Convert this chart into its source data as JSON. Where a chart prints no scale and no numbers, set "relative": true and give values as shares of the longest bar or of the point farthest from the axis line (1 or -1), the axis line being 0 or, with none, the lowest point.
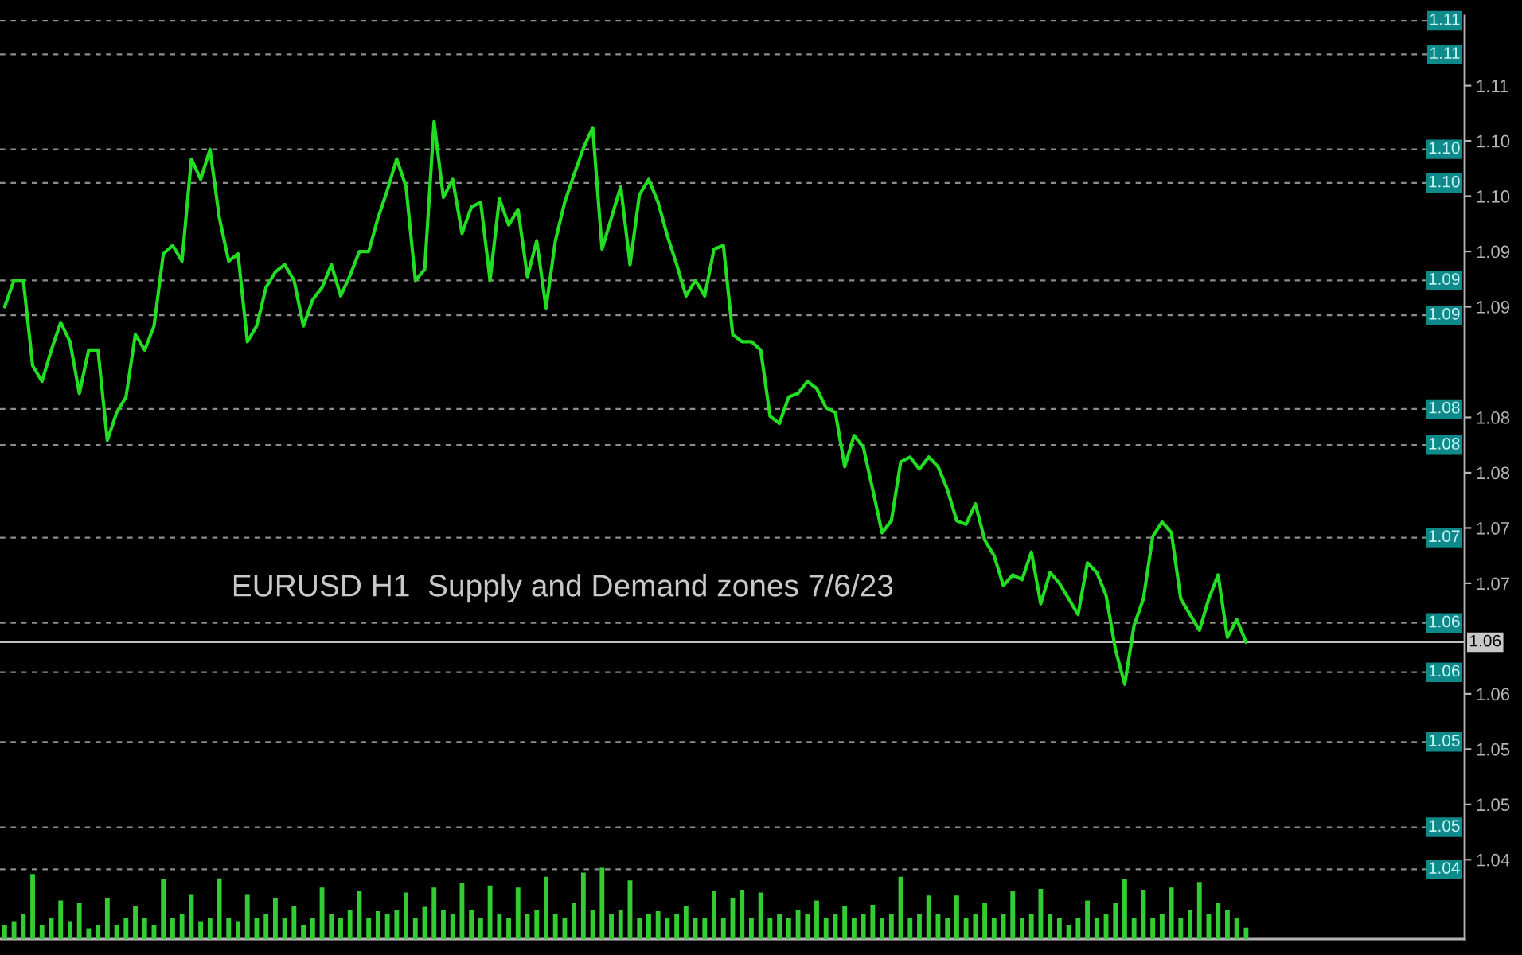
{
  "chart_data": [
    {
      "type": "line",
      "title": "EURUSD H1  Supply and Demand zones 7/6/23",
      "color": "#22dd22",
      "tick_labels": "y",
      "categories": [
        null,
        null,
        null,
        null,
        null,
        null,
        null,
        null,
        null,
        null,
        null,
        null,
        null,
        null,
        null,
        null,
        null,
        null,
        null,
        null,
        null,
        null,
        null,
        null,
        null,
        null,
        null,
        null,
        null,
        null,
        null,
        null,
        null,
        null,
        null,
        null,
        null,
        null,
        null,
        null,
        null,
        null,
        null,
        null,
        null,
        null,
        null,
        null,
        null,
        null,
        null,
        null,
        null,
        null,
        null,
        null,
        null,
        null,
        null,
        null,
        null,
        null,
        null,
        null,
        null,
        null,
        null,
        null,
        null,
        null,
        null,
        null,
        null,
        null,
        null,
        null,
        null,
        null,
        null,
        null,
        null,
        null,
        null,
        null,
        null,
        null,
        null,
        null,
        null,
        null,
        null,
        null,
        null,
        null,
        null,
        null,
        null,
        null,
        null,
        null,
        null,
        null,
        null,
        null,
        null,
        null,
        null,
        null,
        null,
        null,
        null,
        null,
        null,
        null,
        null,
        null,
        null,
        null,
        null,
        null,
        null,
        null,
        null,
        null,
        null,
        null,
        null,
        null,
        null,
        null,
        null,
        null,
        null,
        null
      ],
      "values": [
        1.0896,
        1.0918,
        1.0918,
        1.0847,
        1.0834,
        1.086,
        1.0883,
        1.0867,
        1.0824,
        1.086,
        1.086,
        1.0785,
        1.0808,
        1.0821,
        1.0873,
        1.086,
        1.088,
        1.094,
        1.0947,
        1.0934,
        1.1019,
        1.1002,
        1.1027,
        1.097,
        1.0934,
        1.094,
        1.0867,
        1.088,
        1.0912,
        1.0925,
        1.0931,
        1.0918,
        1.088,
        1.0902,
        1.0912,
        1.0931,
        1.0905,
        1.0922,
        1.0942,
        1.0942,
        1.097,
        1.0993,
        1.1019,
        1.0996,
        1.0918,
        1.0927,
        1.105,
        1.0987,
        1.1002,
        1.0957,
        1.0979,
        1.0983,
        1.0918,
        1.0986,
        1.0964,
        1.0977,
        1.0921,
        1.0951,
        1.0895,
        1.0951,
        1.0983,
        1.1006,
        1.1028,
        1.1045,
        1.0944,
        1.097,
        1.0996,
        1.0931,
        1.0989,
        1.1002,
        1.0983,
        1.0955,
        1.0931,
        1.0905,
        1.0918,
        1.0905,
        1.0944,
        1.0947,
        1.0873,
        1.0867,
        1.0867,
        1.086,
        1.0805,
        1.0799,
        1.0821,
        1.0824,
        1.0834,
        1.0828,
        1.0812,
        1.0808,
        1.0763,
        1.0789,
        1.0779,
        1.0744,
        1.0708,
        1.0718,
        1.0767,
        1.0771,
        1.0761,
        1.0771,
        1.0763,
        1.0744,
        1.0718,
        1.0715,
        1.0732,
        1.0702,
        1.0689,
        1.0664,
        1.0673,
        1.0669,
        1.0692,
        1.0649,
        1.0675,
        1.0666,
        1.0653,
        1.064,
        1.0683,
        1.0675,
        1.0656,
        1.0611,
        1.0582,
        1.0631,
        1.0653,
        1.0705,
        1.0717,
        1.0708,
        1.0653,
        1.064,
        1.0627,
        1.0653,
        1.0673,
        1.0621,
        1.0636,
        1.0617
      ],
      "ylim": [
        1.037,
        1.1138
      ],
      "yticks": [
        {
          "value": 1.108,
          "label": "1.11"
        },
        {
          "value": 1.1034,
          "label": "1.10"
        },
        {
          "value": 1.0988,
          "label": "1.10"
        },
        {
          "value": 1.0942,
          "label": "1.09"
        },
        {
          "value": 1.0896,
          "label": "1.09"
        },
        {
          "value": 1.0804,
          "label": "1.08"
        },
        {
          "value": 1.0758,
          "label": "1.08"
        },
        {
          "value": 1.0712,
          "label": "1.07"
        },
        {
          "value": 1.0666,
          "label": "1.07"
        },
        {
          "value": 1.0574,
          "label": "1.06"
        },
        {
          "value": 1.0528,
          "label": "1.05"
        },
        {
          "value": 1.0482,
          "label": "1.05"
        },
        {
          "value": 1.0436,
          "label": "1.04"
        }
      ],
      "ref_lines": [
        {
          "axis": "y",
          "value": 1.1134,
          "label": "1.11",
          "color": "#8c8c8c",
          "line_style": "dashed"
        },
        {
          "axis": "y",
          "value": 1.1106,
          "label": "1.11",
          "color": "#8c8c8c",
          "line_style": "dashed"
        },
        {
          "axis": "y",
          "value": 1.1027,
          "label": "1.10",
          "color": "#8c8c8c",
          "line_style": "dashed"
        },
        {
          "axis": "y",
          "value": 1.0999,
          "label": "1.10",
          "color": "#8c8c8c",
          "line_style": "dashed"
        },
        {
          "axis": "y",
          "value": 1.0918,
          "label": "1.09",
          "color": "#8c8c8c",
          "line_style": "dashed"
        },
        {
          "axis": "y",
          "value": 1.0889,
          "label": "1.09",
          "color": "#8c8c8c",
          "line_style": "dashed"
        },
        {
          "axis": "y",
          "value": 1.0811,
          "label": "1.08",
          "color": "#8c8c8c",
          "line_style": "dashed"
        },
        {
          "axis": "y",
          "value": 1.0781,
          "label": "1.08",
          "color": "#8c8c8c",
          "line_style": "dashed"
        },
        {
          "axis": "y",
          "value": 1.0704,
          "label": "1.07",
          "color": "#8c8c8c",
          "line_style": "dashed"
        },
        {
          "axis": "y",
          "value": 1.0633,
          "label": "1.06",
          "color": "#8c8c8c",
          "line_style": "dashed"
        },
        {
          "axis": "y",
          "value": 1.0617,
          "label": "1.06",
          "color": "#c0c0c0",
          "line_style": "solid"
        },
        {
          "axis": "y",
          "value": 1.0592,
          "label": "1.06",
          "color": "#8c8c8c",
          "line_style": "dashed"
        },
        {
          "axis": "y",
          "value": 1.0534,
          "label": "1.05",
          "color": "#8c8c8c",
          "line_style": "dashed"
        },
        {
          "axis": "y",
          "value": 1.0463,
          "label": "1.05",
          "color": "#8c8c8c",
          "line_style": "dashed"
        },
        {
          "axis": "y",
          "value": 1.0428,
          "label": "1.04",
          "color": "#8c8c8c",
          "line_style": "dashed"
        }
      ]
    },
    {
      "type": "bar",
      "relative": true,
      "color": "#33cc33",
      "categories": [
        null,
        null,
        null,
        null,
        null,
        null,
        null,
        null,
        null,
        null,
        null,
        null,
        null,
        null,
        null,
        null,
        null,
        null,
        null,
        null,
        null,
        null,
        null,
        null,
        null,
        null,
        null,
        null,
        null,
        null,
        null,
        null,
        null,
        null,
        null,
        null,
        null,
        null,
        null,
        null,
        null,
        null,
        null,
        null,
        null,
        null,
        null,
        null,
        null,
        null,
        null,
        null,
        null,
        null,
        null,
        null,
        null,
        null,
        null,
        null,
        null,
        null,
        null,
        null,
        null,
        null,
        null,
        null,
        null,
        null,
        null,
        null,
        null,
        null,
        null,
        null,
        null,
        null,
        null,
        null,
        null,
        null,
        null,
        null,
        null,
        null,
        null,
        null,
        null,
        null,
        null,
        null,
        null,
        null,
        null,
        null,
        null,
        null,
        null,
        null,
        null,
        null,
        null,
        null,
        null,
        null,
        null,
        null,
        null,
        null,
        null,
        null,
        null,
        null,
        null,
        null,
        null,
        null,
        null,
        null,
        null,
        null,
        null,
        null,
        null,
        null,
        null,
        null,
        null,
        null,
        null,
        null,
        null,
        null
      ],
      "values": [
        0.2,
        0.25,
        0.35,
        0.91,
        0.2,
        0.3,
        0.54,
        0.25,
        0.5,
        0.15,
        0.2,
        0.57,
        0.2,
        0.3,
        0.46,
        0.3,
        0.2,
        0.84,
        0.3,
        0.35,
        0.63,
        0.25,
        0.3,
        0.85,
        0.3,
        0.25,
        0.63,
        0.3,
        0.35,
        0.57,
        0.3,
        0.46,
        0.2,
        0.3,
        0.72,
        0.35,
        0.3,
        0.4,
        0.67,
        0.3,
        0.39,
        0.35,
        0.4,
        0.65,
        0.3,
        0.45,
        0.72,
        0.4,
        0.35,
        0.78,
        0.4,
        0.3,
        0.75,
        0.35,
        0.3,
        0.72,
        0.35,
        0.4,
        0.87,
        0.35,
        0.3,
        0.5,
        0.93,
        0.4,
        1.0,
        0.35,
        0.4,
        0.82,
        0.3,
        0.35,
        0.39,
        0.3,
        0.35,
        0.46,
        0.3,
        0.3,
        0.67,
        0.3,
        0.57,
        0.69,
        0.3,
        0.65,
        0.3,
        0.35,
        0.3,
        0.4,
        0.35,
        0.54,
        0.3,
        0.35,
        0.46,
        0.3,
        0.35,
        0.48,
        0.3,
        0.35,
        0.87,
        0.3,
        0.35,
        0.61,
        0.35,
        0.3,
        0.61,
        0.3,
        0.35,
        0.5,
        0.3,
        0.35,
        0.67,
        0.3,
        0.35,
        0.7,
        0.35,
        0.3,
        0.2,
        0.3,
        0.54,
        0.3,
        0.35,
        0.5,
        0.84,
        0.3,
        0.69,
        0.3,
        0.35,
        0.72,
        0.3,
        0.4,
        0.8,
        0.35,
        0.5,
        0.4,
        0.3,
        0.16
      ]
    }
  ]
}
